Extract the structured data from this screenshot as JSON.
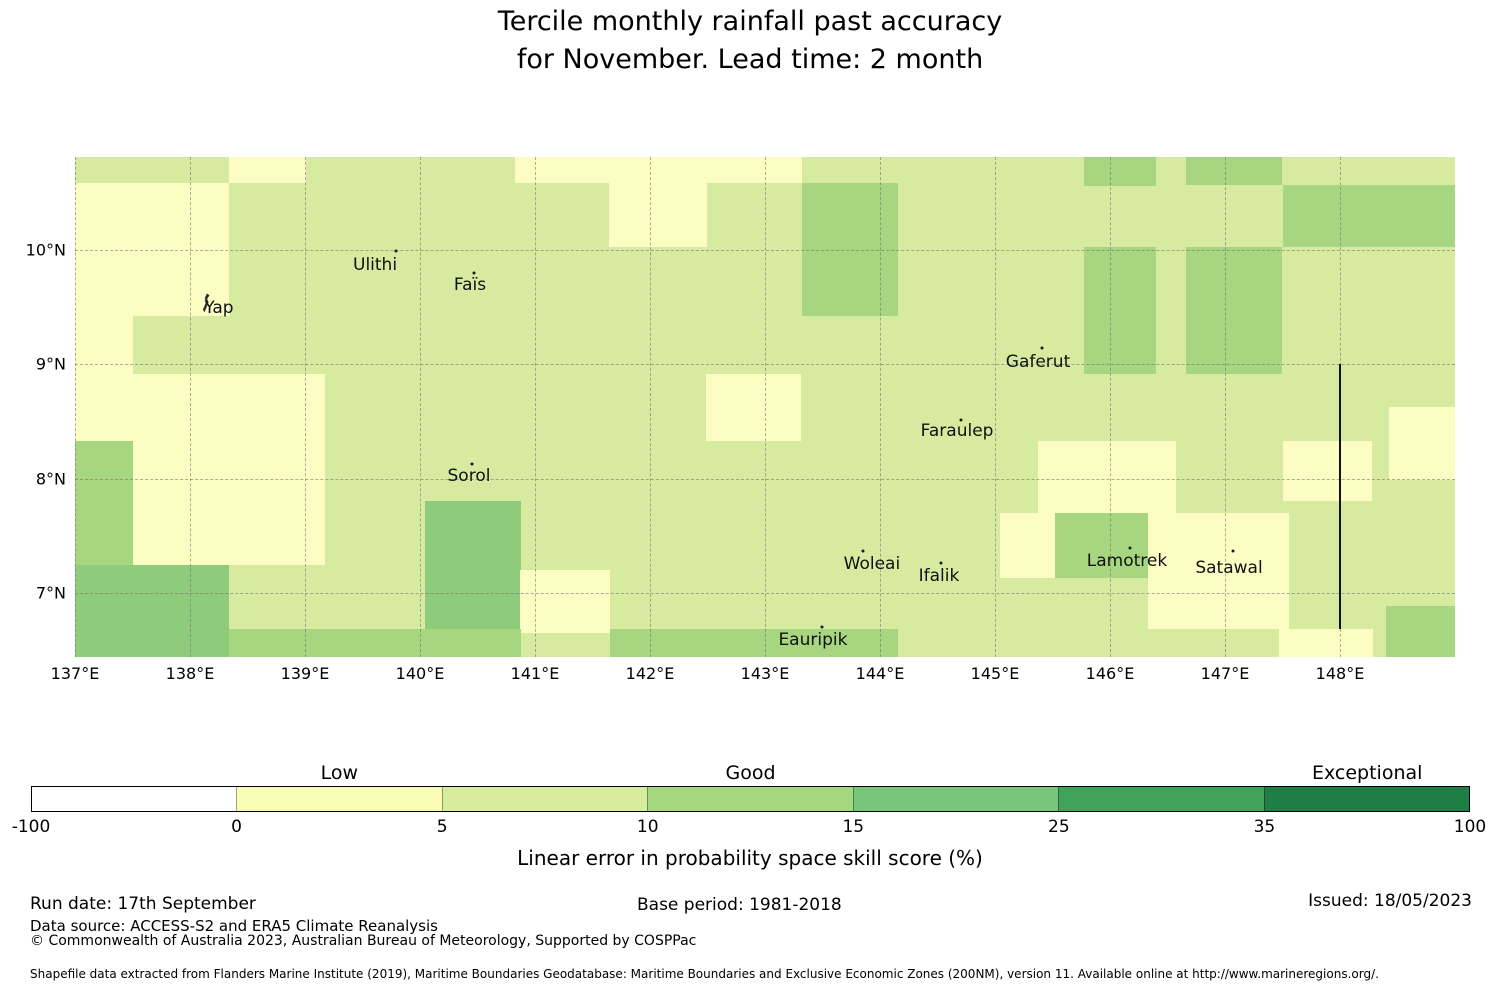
{
  "chart_data": {
    "type": "heatmap",
    "title_line1": "Tercile monthly rainfall past accuracy",
    "title_line2": "for November. Lead time: 2 month",
    "map": {
      "lon_min": 137,
      "lon_max": 149,
      "lat_min": 6.445,
      "lat_max": 10.812,
      "grid": "dashed graticule every 1 degree",
      "base_bin": "b3",
      "bin_colors": {
        "b1": "#ffffff",
        "b2": "#fbfdc3",
        "b3": "#d6eb9f",
        "b4": "#a7d680",
        "b5": "#8ecb7b"
      },
      "x_ticks": [
        {
          "lon": 137,
          "label": "137°E"
        },
        {
          "lon": 138,
          "label": "138°E"
        },
        {
          "lon": 139,
          "label": "139°E"
        },
        {
          "lon": 140,
          "label": "140°E"
        },
        {
          "lon": 141,
          "label": "141°E"
        },
        {
          "lon": 142,
          "label": "142°E"
        },
        {
          "lon": 143,
          "label": "143°E"
        },
        {
          "lon": 144,
          "label": "144°E"
        },
        {
          "lon": 145,
          "label": "145°E"
        },
        {
          "lon": 146,
          "label": "146°E"
        },
        {
          "lon": 147,
          "label": "147°E"
        },
        {
          "lon": 148,
          "label": "148°E"
        }
      ],
      "y_ticks": [
        {
          "lat": 7,
          "label": "7°N"
        },
        {
          "lat": 8,
          "label": "8°N"
        },
        {
          "lat": 9,
          "label": "9°N"
        },
        {
          "lat": 10,
          "label": "10°N"
        }
      ],
      "patches": [
        {
          "lon0": 138.34,
          "lon1": 139.01,
          "lat0": 10.585,
          "lat1": 10.812,
          "bin": "b2"
        },
        {
          "lon0": 137.0,
          "lon1": 138.34,
          "lat0": 9.424,
          "lat1": 10.585,
          "bin": "b2"
        },
        {
          "lon0": 137.0,
          "lon1": 137.5,
          "lat0": 8.332,
          "lat1": 9.424,
          "bin": "b2"
        },
        {
          "lon0": 137.5,
          "lon1": 138.34,
          "lat0": 7.249,
          "lat1": 8.917,
          "bin": "b2"
        },
        {
          "lon0": 138.34,
          "lon1": 139.17,
          "lat0": 7.249,
          "lat1": 8.917,
          "bin": "b2"
        },
        {
          "lon0": 137.0,
          "lon1": 137.5,
          "lat0": 7.249,
          "lat1": 8.332,
          "bin": "b4"
        },
        {
          "lon0": 137.0,
          "lon1": 138.34,
          "lat0": 6.445,
          "lat1": 7.249,
          "bin": "b5"
        },
        {
          "lon0": 140.83,
          "lon1": 143.32,
          "lat0": 10.585,
          "lat1": 10.812,
          "bin": "b2"
        },
        {
          "lon0": 141.64,
          "lon1": 142.5,
          "lat0": 10.026,
          "lat1": 10.585,
          "bin": "b2"
        },
        {
          "lon0": 140.04,
          "lon1": 140.88,
          "lat0": 6.69,
          "lat1": 7.808,
          "bin": "b5"
        },
        {
          "lon0": 140.87,
          "lon1": 141.65,
          "lat0": 6.655,
          "lat1": 7.205,
          "bin": "b2"
        },
        {
          "lon0": 138.34,
          "lon1": 140.88,
          "lat0": 6.445,
          "lat1": 6.69,
          "bin": "b4"
        },
        {
          "lon0": 141.65,
          "lon1": 144.16,
          "lat0": 6.445,
          "lat1": 6.69,
          "bin": "b4"
        },
        {
          "lon0": 142.49,
          "lon1": 143.31,
          "lat0": 8.332,
          "lat1": 8.917,
          "bin": "b2"
        },
        {
          "lon0": 143.32,
          "lon1": 144.16,
          "lat0": 9.424,
          "lat1": 10.585,
          "bin": "b4"
        },
        {
          "lon0": 145.77,
          "lon1": 146.4,
          "lat0": 10.559,
          "lat1": 10.812,
          "bin": "b4"
        },
        {
          "lon0": 145.77,
          "lon1": 146.4,
          "lat0": 8.917,
          "lat1": 10.026,
          "bin": "b4"
        },
        {
          "lon0": 146.66,
          "lon1": 147.5,
          "lat0": 10.568,
          "lat1": 10.812,
          "bin": "b4"
        },
        {
          "lon0": 147.5,
          "lon1": 149.0,
          "lat0": 10.026,
          "lat1": 10.568,
          "bin": "b4"
        },
        {
          "lon0": 146.66,
          "lon1": 147.5,
          "lat0": 8.917,
          "lat1": 10.026,
          "bin": "b4"
        },
        {
          "lon0": 148.43,
          "lon1": 149.0,
          "lat0": 7.991,
          "lat1": 8.629,
          "bin": "b2"
        },
        {
          "lon0": 147.5,
          "lon1": 148.28,
          "lat0": 7.808,
          "lat1": 8.332,
          "bin": "b2"
        },
        {
          "lon0": 145.37,
          "lon1": 146.57,
          "lat0": 7.703,
          "lat1": 8.332,
          "bin": "b2"
        },
        {
          "lon0": 145.04,
          "lon1": 145.52,
          "lat0": 7.135,
          "lat1": 7.703,
          "bin": "b2"
        },
        {
          "lon0": 145.52,
          "lon1": 146.33,
          "lat0": 7.135,
          "lat1": 7.703,
          "bin": "b4"
        },
        {
          "lon0": 146.33,
          "lon1": 147.56,
          "lat0": 6.69,
          "lat1": 7.703,
          "bin": "b2"
        },
        {
          "lon0": 147.47,
          "lon1": 148.29,
          "lat0": 6.445,
          "lat1": 6.69,
          "bin": "b2"
        },
        {
          "lon0": 148.4,
          "lon1": 149.0,
          "lat0": 6.445,
          "lat1": 6.891,
          "bin": "b4"
        }
      ],
      "islands": [
        {
          "name": "Yap",
          "label_lon": 138.252,
          "label_lat": 9.493,
          "dot_lon": 138.139,
          "dot_lat": 9.537,
          "marker": "island"
        },
        {
          "name": "Ulithi",
          "label_lon": 139.609,
          "label_lat": 9.869,
          "dot_lon": 139.791,
          "dot_lat": 9.991,
          "marker": "dot"
        },
        {
          "name": "Faïs",
          "label_lon": 140.435,
          "label_lat": 9.694,
          "dot_lon": 140.47,
          "dot_lat": 9.799,
          "marker": "dot"
        },
        {
          "name": "Sorol",
          "label_lon": 140.426,
          "label_lat": 8.026,
          "dot_lon": 140.452,
          "dot_lat": 8.131,
          "marker": "dot"
        },
        {
          "name": "Gaferut",
          "label_lon": 145.374,
          "label_lat": 9.022,
          "dot_lon": 145.409,
          "dot_lat": 9.144,
          "marker": "dot"
        },
        {
          "name": "Faraulep",
          "label_lon": 144.67,
          "label_lat": 8.419,
          "dot_lon": 144.704,
          "dot_lat": 8.515,
          "marker": "dot"
        },
        {
          "name": "Woleai",
          "label_lon": 143.93,
          "label_lat": 7.258,
          "dot_lon": 143.852,
          "dot_lat": 7.371,
          "marker": "dot"
        },
        {
          "name": "Ifalik",
          "label_lon": 144.513,
          "label_lat": 7.153,
          "dot_lon": 144.53,
          "dot_lat": 7.266,
          "marker": "dot"
        },
        {
          "name": "Lamotrek",
          "label_lon": 146.148,
          "label_lat": 7.283,
          "dot_lon": 146.174,
          "dot_lat": 7.397,
          "marker": "dot"
        },
        {
          "name": "Satawal",
          "label_lon": 147.035,
          "label_lat": 7.222,
          "dot_lon": 147.07,
          "dot_lat": 7.371,
          "marker": "dot"
        },
        {
          "name": "Eauripik",
          "label_lon": 143.417,
          "label_lat": 6.594,
          "dot_lon": 143.496,
          "dot_lat": 6.707,
          "marker": "dot"
        }
      ],
      "eez_line": {
        "lon": 148.0,
        "lat_from": 6.69,
        "lat_to": 9.0
      }
    },
    "colorbar": {
      "tick_labels": [
        "-100",
        "0",
        "5",
        "10",
        "15",
        "25",
        "35",
        "100"
      ],
      "segment_colors": [
        "#ffffff",
        "#f9fcb4",
        "#d8ec9e",
        "#a5d77f",
        "#78c679",
        "#41a25a",
        "#1f7e45"
      ],
      "category_labels": [
        {
          "text": "Low",
          "segment_index": 1
        },
        {
          "text": "Good",
          "segment_index": 3
        },
        {
          "text": "Exceptional",
          "segment_index": 6
        }
      ],
      "axis_label": "Linear error in probability space skill score (%)"
    },
    "footer": {
      "run_date": "Run date: 17th September",
      "data_source": "Data source: ACCESS-S2 and ERA5 Climate Reanalysis",
      "copyright": "© Commonwealth of Australia 2023, Australian Bureau of Meteorology, Supported by COSPPac",
      "base_period": "Base period: 1981-2018",
      "issued": "Issued: 18/05/2023",
      "shapefile_note": "Shapefile data extracted from Flanders Marine Institute (2019), Maritime Boundaries Geodatabase: Maritime Boundaries and Exclusive Economic Zones (200NM), version 11. Available online at http://www.marineregions.org/."
    }
  }
}
